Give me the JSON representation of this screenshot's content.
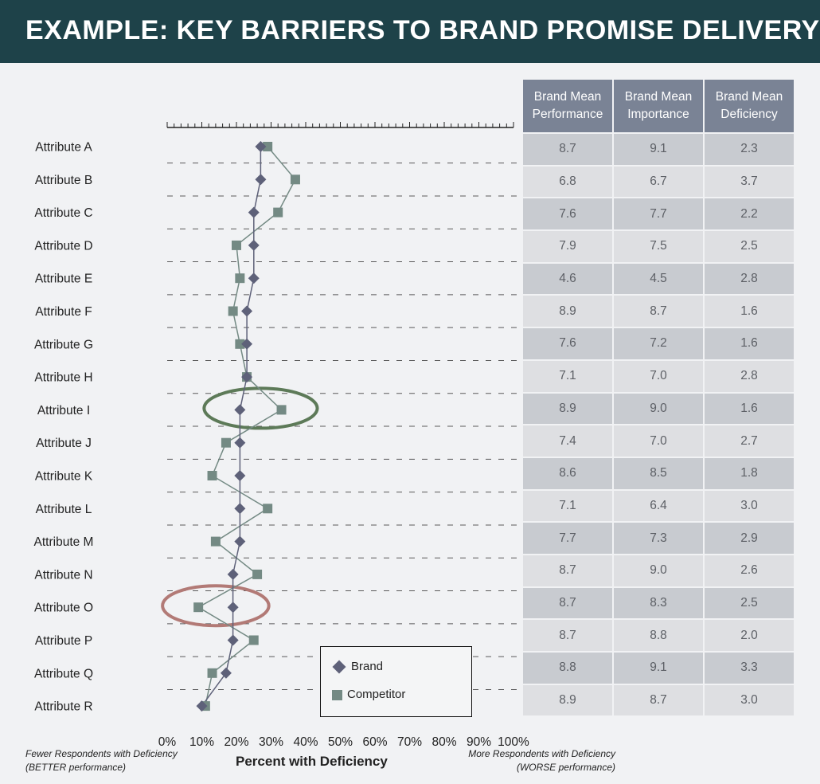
{
  "header": {
    "title": "EXAMPLE: KEY BARRIERS TO BRAND PROMISE DELIVERY"
  },
  "chart_data": {
    "type": "line",
    "orientation": "horizontal",
    "categories": [
      "Attribute A",
      "Attribute B",
      "Attribute C",
      "Attribute D",
      "Attribute E",
      "Attribute F",
      "Attribute G",
      "Attribute H",
      "Attribute I",
      "Attribute J",
      "Attribute K",
      "Attribute L",
      "Attribute M",
      "Attribute N",
      "Attribute O",
      "Attribute P",
      "Attribute Q",
      "Attribute R"
    ],
    "series": [
      {
        "name": "Brand",
        "marker": "diamond",
        "color": "#5e6179",
        "values": [
          27,
          27,
          25,
          25,
          25,
          23,
          23,
          23,
          21,
          21,
          21,
          21,
          21,
          19,
          19,
          19,
          17,
          10
        ]
      },
      {
        "name": "Competitor",
        "marker": "square",
        "color": "#748a84",
        "values": [
          29,
          37,
          32,
          20,
          21,
          19,
          21,
          23,
          33,
          17,
          13,
          29,
          14,
          26,
          9,
          25,
          13,
          11
        ]
      }
    ],
    "xlim": [
      0,
      100
    ],
    "xticks": [
      "0%",
      "10%",
      "20%",
      "30%",
      "40%",
      "50%",
      "60%",
      "70%",
      "80%",
      "90%",
      "100%"
    ],
    "xlabel": "Percent with Deficiency",
    "x_left_note": [
      "Fewer Respondents with Deficiency",
      "(BETTER performance)"
    ],
    "x_right_note": [
      "More Respondents with Deficiency",
      "(WORSE performance)"
    ],
    "highlights": [
      {
        "category": "Attribute I",
        "color": "#5d7a58"
      },
      {
        "category": "Attribute O",
        "color": "#b27a76"
      }
    ],
    "legend": {
      "position": "bottom-right",
      "entries": [
        "Brand",
        "Competitor"
      ]
    }
  },
  "table": {
    "headers": [
      [
        "Brand Mean",
        "Performance"
      ],
      [
        "Brand Mean",
        "Importance"
      ],
      [
        "Brand Mean",
        "Deficiency"
      ]
    ],
    "rows": [
      [
        "8.7",
        "9.1",
        "2.3"
      ],
      [
        "6.8",
        "6.7",
        "3.7"
      ],
      [
        "7.6",
        "7.7",
        "2.2"
      ],
      [
        "7.9",
        "7.5",
        "2.5"
      ],
      [
        "4.6",
        "4.5",
        "2.8"
      ],
      [
        "8.9",
        "8.7",
        "1.6"
      ],
      [
        "7.6",
        "7.2",
        "1.6"
      ],
      [
        "7.1",
        "7.0",
        "2.8"
      ],
      [
        "8.9",
        "9.0",
        "1.6"
      ],
      [
        "7.4",
        "7.0",
        "2.7"
      ],
      [
        "8.6",
        "8.5",
        "1.8"
      ],
      [
        "7.1",
        "6.4",
        "3.0"
      ],
      [
        "7.7",
        "7.3",
        "2.9"
      ],
      [
        "8.7",
        "9.0",
        "2.6"
      ],
      [
        "8.7",
        "8.3",
        "2.5"
      ],
      [
        "8.7",
        "8.8",
        "2.0"
      ],
      [
        "8.8",
        "9.1",
        "3.3"
      ],
      [
        "8.9",
        "8.7",
        "3.0"
      ]
    ]
  }
}
